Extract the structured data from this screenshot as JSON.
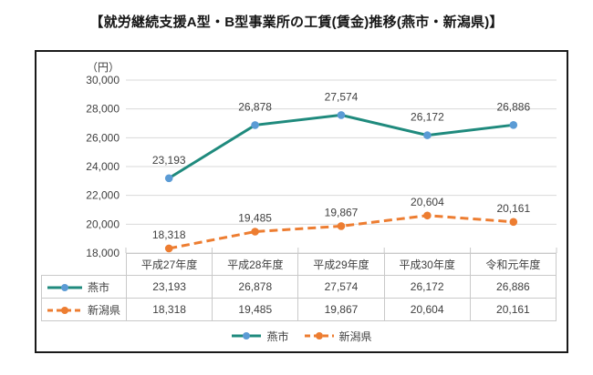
{
  "chart_data": {
    "type": "line",
    "title": "【就労継続支援A型・B型事業所の工賃(賃金)推移(燕市・新潟県)】",
    "unit_label": "（円）",
    "categories": [
      "平成27年度",
      "平成28年度",
      "平成29年度",
      "平成30年度",
      "令和元年度"
    ],
    "series": [
      {
        "name": "燕市",
        "values": [
          23193,
          26878,
          27574,
          26172,
          26886
        ],
        "line_color": "#1F8A7D",
        "marker_color": "#5B9BD5",
        "line_style": "solid"
      },
      {
        "name": "新潟県",
        "values": [
          18318,
          19485,
          19867,
          20604,
          20161
        ],
        "line_color": "#ED7D31",
        "marker_color": "#ED7D31",
        "line_style": "dashed"
      }
    ],
    "ylim": [
      18000,
      30000
    ],
    "yticks": [
      18000,
      20000,
      22000,
      24000,
      26000,
      28000,
      30000
    ],
    "grid": true,
    "legend_position": "bottom",
    "show_data_table": true,
    "data_labels": true
  },
  "colors": {
    "grid": "#d9d9d9",
    "table_border": "#c9c9c9",
    "text": "#404040",
    "frame_border": "#1a1a1a"
  }
}
